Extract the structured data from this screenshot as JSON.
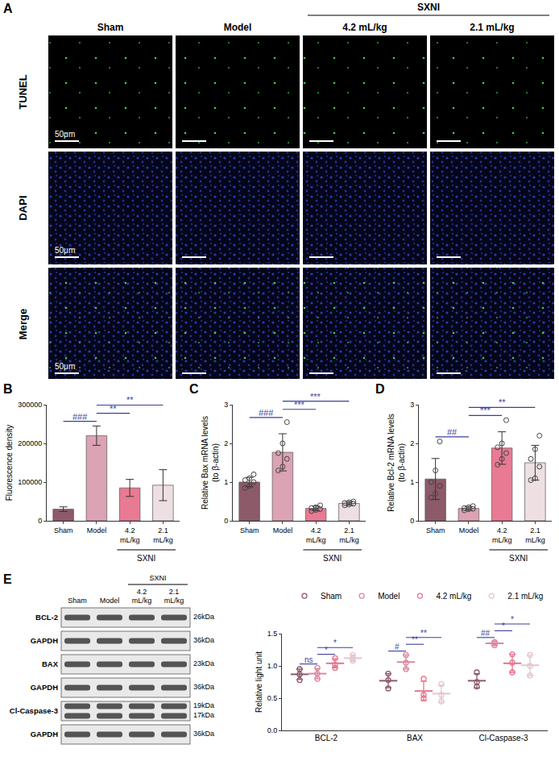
{
  "images": {
    "letter": "A",
    "columns": [
      "Sham",
      "Model",
      "4.2 mL/kg",
      "2.1 mL/kg"
    ],
    "column_group": {
      "text": "SXNI",
      "columns": [
        "4.2 mL/kg",
        "2.1 mL/kg"
      ]
    },
    "rows": [
      "TUNEL",
      "DAPI",
      "Merge"
    ],
    "scale_bar": "50μm"
  },
  "blot": {
    "letter": "E",
    "lanes": [
      "Sham",
      "Model",
      "4.2 mL/kg",
      "2.1 mL/kg"
    ],
    "lane_group": {
      "text": "SXNI",
      "lanes": [
        "4.2 mL/kg",
        "2.1 mL/kg"
      ]
    },
    "rows": [
      {
        "protein": "BCL-2",
        "kda": [
          "26kDa"
        ]
      },
      {
        "protein": "GAPDH",
        "kda": [
          "36kDa"
        ]
      },
      {
        "protein": "BAX",
        "kda": [
          "23kDa"
        ]
      },
      {
        "protein": "GAPDH",
        "kda": [
          "36kDa"
        ]
      },
      {
        "protein": "Cl-Caspase-3",
        "kda": [
          "19kDa",
          "17kDa"
        ]
      },
      {
        "protein": "GAPDH",
        "kda": [
          "36kDa"
        ]
      }
    ]
  },
  "chart_data": [
    {
      "letter": "B",
      "type": "bar",
      "y_label": "Fluorescence density",
      "categories": [
        "Sham",
        "Model",
        "4.2 mL/kg",
        "2.1 mL/kg"
      ],
      "values": [
        30000,
        220000,
        85000,
        92000
      ],
      "errors": [
        6000,
        25000,
        22000,
        40000
      ],
      "colors": [
        "#8c5a68",
        "#dba3b3",
        "#e87a93",
        "#eedfe2"
      ],
      "ylim": [
        0,
        300000
      ],
      "yticks": [
        0,
        100000,
        200000,
        300000
      ],
      "comparisons": [
        {
          "from": "Sham",
          "to": "Model",
          "label": "###"
        },
        {
          "from": "Model",
          "to": "4.2 mL/kg",
          "label": "**"
        },
        {
          "from": "Model",
          "to": "2.1 mL/kg",
          "label": "**"
        }
      ],
      "annotations": [
        {
          "text": "SXNI",
          "categories": [
            "4.2 mL/kg",
            "2.1 mL/kg"
          ]
        }
      ]
    },
    {
      "letter": "C",
      "type": "bar",
      "y_label": "Relative Bax mRNA levels (to β-actin)",
      "categories": [
        "Sham",
        "Model",
        "4.2 mL/kg",
        "2.1 mL/kg"
      ],
      "values": [
        1.0,
        1.77,
        0.32,
        0.45
      ],
      "errors": [
        0.12,
        0.48,
        0.06,
        0.05
      ],
      "points": [
        [
          0.85,
          0.9,
          1.0,
          1.05,
          1.1,
          1.2
        ],
        [
          1.3,
          1.4,
          1.6,
          1.75,
          2.0,
          2.55
        ],
        [
          0.25,
          0.28,
          0.3,
          0.33,
          0.35,
          0.4
        ],
        [
          0.4,
          0.42,
          0.44,
          0.46,
          0.48,
          0.5
        ]
      ],
      "colors": [
        "#8c5a68",
        "#dba3b3",
        "#e87a93",
        "#eedfe2"
      ],
      "ylim": [
        0,
        3
      ],
      "yticks": [
        0,
        1,
        2,
        3
      ],
      "comparisons": [
        {
          "from": "Sham",
          "to": "Model",
          "label": "###"
        },
        {
          "from": "Model",
          "to": "4.2 mL/kg",
          "label": "***"
        },
        {
          "from": "Model",
          "to": "2.1 mL/kg",
          "label": "***"
        }
      ],
      "annotations": [
        {
          "text": "SXNI",
          "categories": [
            "4.2 mL/kg",
            "2.1 mL/kg"
          ]
        }
      ]
    },
    {
      "letter": "D",
      "type": "bar",
      "y_label": "Relative Bcl-2 mRNA levels (to β-actin)",
      "categories": [
        "Sham",
        "Model",
        "4.2 mL/kg",
        "2.1 mL/kg"
      ],
      "values": [
        1.08,
        0.32,
        1.88,
        1.5
      ],
      "errors": [
        0.53,
        0.05,
        0.42,
        0.45
      ],
      "points": [
        [
          0.6,
          0.7,
          0.9,
          1.0,
          1.3,
          2.05
        ],
        [
          0.27,
          0.3,
          0.31,
          0.33,
          0.35,
          0.38
        ],
        [
          1.45,
          1.6,
          1.75,
          1.9,
          2.0,
          2.6
        ],
        [
          1.05,
          1.1,
          1.4,
          1.6,
          1.85,
          2.2
        ]
      ],
      "colors": [
        "#8c5a68",
        "#dba3b3",
        "#e87a93",
        "#eedfe2"
      ],
      "ylim": [
        0,
        3
      ],
      "yticks": [
        0,
        1,
        2,
        3
      ],
      "comparisons": [
        {
          "from": "Sham",
          "to": "Model",
          "label": "##"
        },
        {
          "from": "Model",
          "to": "4.2 mL/kg",
          "label": "***"
        },
        {
          "from": "Model",
          "to": "2.1 mL/kg",
          "label": "**"
        }
      ],
      "annotations": [
        {
          "text": "SXNI",
          "categories": [
            "4.2 mL/kg",
            "2.1 mL/kg"
          ]
        }
      ]
    },
    {
      "type": "dot",
      "y_label": "Relative light unit",
      "categories": [
        "BCL-2",
        "BAX",
        "Cl-Caspase-3"
      ],
      "legend": "top right",
      "series": [
        {
          "name": "Sham",
          "color": "#8c5a68",
          "values": [
            0.87,
            0.77,
            0.77
          ],
          "errors": [
            0.08,
            0.11,
            0.11
          ],
          "points": [
            [
              0.78,
              0.87,
              0.95
            ],
            [
              0.65,
              0.78,
              0.88
            ],
            [
              0.68,
              0.75,
              0.9
            ]
          ]
        },
        {
          "name": "Model",
          "color": "#d98aa0",
          "values": [
            0.88,
            1.06,
            1.35
          ],
          "errors": [
            0.08,
            0.11,
            0.03
          ],
          "points": [
            [
              0.8,
              0.88,
              0.97
            ],
            [
              0.95,
              1.05,
              1.17
            ],
            [
              1.32,
              1.35,
              1.37
            ]
          ]
        },
        {
          "name": "4.2 mL/kg",
          "color": "#e8748e",
          "values": [
            1.04,
            0.61,
            1.04
          ],
          "errors": [
            0.07,
            0.15,
            0.14
          ],
          "points": [
            [
              0.97,
              1.02,
              1.12
            ],
            [
              0.5,
              0.55,
              0.8
            ],
            [
              0.9,
              1.05,
              1.18
            ]
          ]
        },
        {
          "name": "2.1 mL/kg",
          "color": "#e3c6ce",
          "values": [
            1.12,
            0.57,
            1.01
          ],
          "errors": [
            0.05,
            0.13,
            0.16
          ],
          "points": [
            [
              1.08,
              1.12,
              1.17
            ],
            [
              0.45,
              0.55,
              0.72
            ],
            [
              0.85,
              1.0,
              1.17
            ]
          ]
        }
      ],
      "ylim": [
        0,
        1.5
      ],
      "yticks": [
        {
          "value": 0,
          "label": "0.0"
        },
        {
          "value": 0.5,
          "label": "0.5"
        },
        {
          "value": 1,
          "label": "1.0"
        },
        {
          "value": 1.5,
          "label": "1.5"
        }
      ],
      "comparisons": [
        {
          "category": "BCL-2",
          "from": "Sham",
          "to": "Model",
          "label": "ns"
        },
        {
          "category": "BCL-2",
          "from": "Model",
          "to": "4.2 mL/kg",
          "label": "*"
        },
        {
          "category": "BCL-2",
          "from": "Model",
          "to": "2.1 mL/kg",
          "label": "*"
        },
        {
          "category": "BAX",
          "from": "Sham",
          "to": "Model",
          "label": "#"
        },
        {
          "category": "BAX",
          "from": "Model",
          "to": "4.2 mL/kg",
          "label": "**"
        },
        {
          "category": "BAX",
          "from": "Model",
          "to": "2.1 mL/kg",
          "label": "**"
        },
        {
          "category": "Cl-Caspase-3",
          "from": "Sham",
          "to": "Model",
          "label": "##"
        },
        {
          "category": "Cl-Caspase-3",
          "from": "Model",
          "to": "4.2 mL/kg",
          "label": "*"
        },
        {
          "category": "Cl-Caspase-3",
          "from": "Model",
          "to": "2.1 mL/kg",
          "label": "*"
        }
      ]
    }
  ]
}
